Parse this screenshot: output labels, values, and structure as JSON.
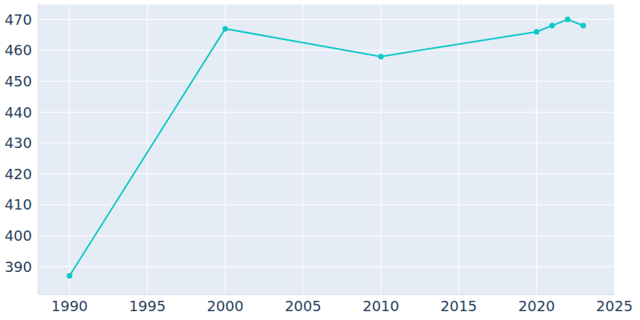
{
  "chart_data": {
    "type": "line",
    "x": [
      1990,
      2000,
      2010,
      2020,
      2021,
      2022,
      2023
    ],
    "values": [
      387,
      467,
      458,
      466,
      468,
      470,
      468
    ],
    "color": "#0fc8c8",
    "xlim": [
      1988,
      2025
    ],
    "xticks": [
      1990,
      1995,
      2000,
      2005,
      2010,
      2015,
      2020,
      2025
    ],
    "ylim": [
      381,
      475
    ],
    "yticks": [
      390,
      400,
      410,
      420,
      430,
      440,
      450,
      460,
      470
    ],
    "grid": true
  }
}
